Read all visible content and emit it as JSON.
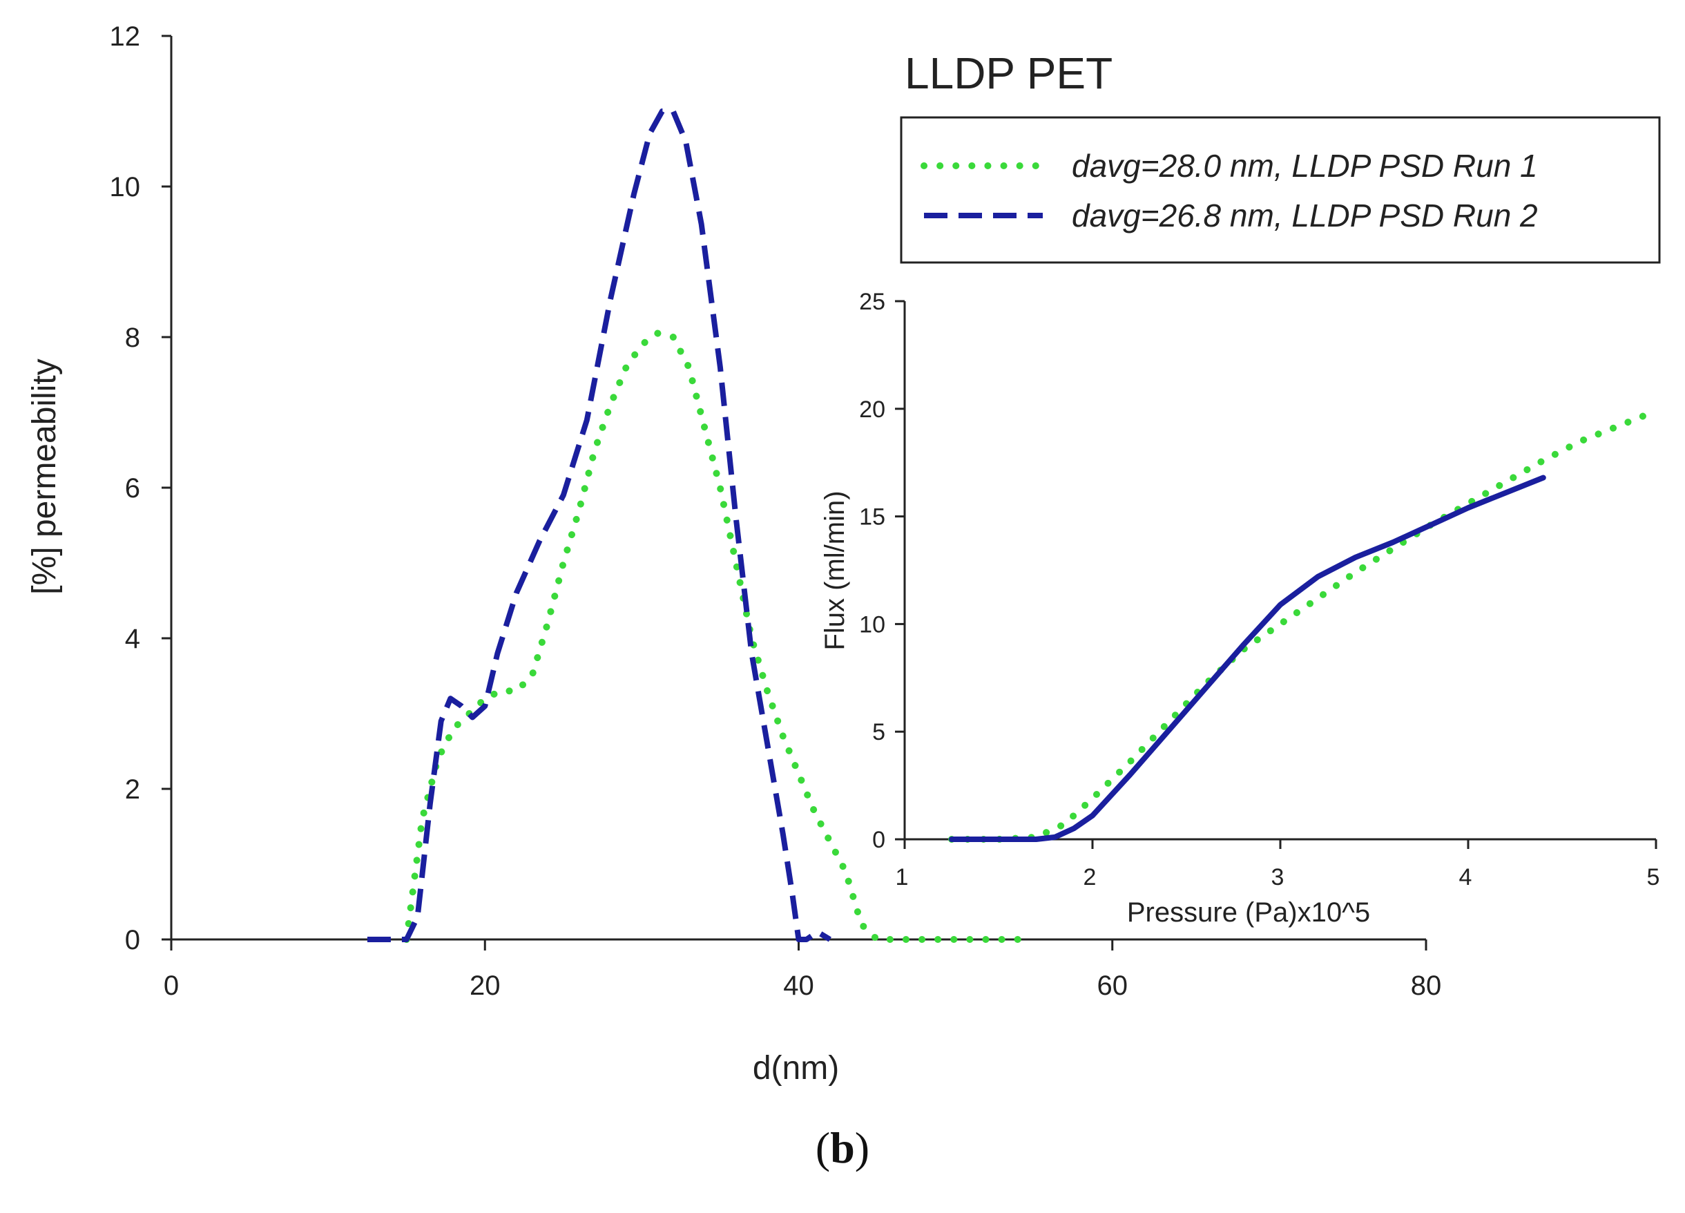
{
  "figure": {
    "caption_open": "(",
    "caption_letter": "b",
    "caption_close": ")"
  },
  "colors": {
    "run1": "#3ad93a",
    "run2": "#1a1f9e",
    "axis": "#222222"
  },
  "chart_data": [
    {
      "type": "line",
      "title": "LLDP PET",
      "xlabel": "d(nm)",
      "ylabel": "[%] permeability",
      "xlim": [
        0,
        80
      ],
      "ylim": [
        0,
        12
      ],
      "xticks": [
        0,
        20,
        40,
        60,
        80
      ],
      "yticks": [
        0,
        2,
        4,
        6,
        8,
        10,
        12
      ],
      "legend_position": "top-right",
      "series": [
        {
          "name": "davg=28.0 nm, LLDP PSD Run 1",
          "style": "dotted",
          "color": "#3ad93a",
          "x": [
            15,
            16,
            17,
            18,
            19,
            20,
            21,
            22,
            23,
            24,
            25,
            26,
            27,
            28,
            29,
            30,
            31,
            32,
            33,
            34,
            35,
            36,
            37,
            38,
            39,
            40,
            41,
            42,
            43,
            44,
            45,
            46,
            48,
            50,
            52,
            54
          ],
          "y": [
            0,
            1.6,
            2.4,
            2.8,
            3.0,
            3.2,
            3.3,
            3.3,
            3.5,
            4.2,
            5.0,
            5.7,
            6.5,
            7.1,
            7.6,
            7.9,
            8.05,
            8.0,
            7.6,
            6.8,
            6.0,
            5.0,
            4.0,
            3.3,
            2.7,
            2.2,
            1.7,
            1.3,
            0.9,
            0.2,
            0,
            0,
            0,
            0,
            0,
            0
          ]
        },
        {
          "name": "davg=26.8 nm, LLDP PSD Run 2",
          "style": "dashed",
          "color": "#1a1f9e",
          "x": [
            12.5,
            15,
            15.7,
            16.5,
            17.2,
            17.8,
            18.5,
            19.2,
            20,
            20.8,
            22,
            23.5,
            25,
            26.5,
            28,
            29.5,
            30.5,
            31.3,
            32,
            32.8,
            33.8,
            35,
            36,
            37,
            38,
            39,
            39.6,
            40,
            40.5,
            41.2,
            42
          ],
          "y": [
            0,
            0,
            0.3,
            1.8,
            2.9,
            3.2,
            3.1,
            2.95,
            3.1,
            3.8,
            4.6,
            5.3,
            5.9,
            6.9,
            8.5,
            9.9,
            10.7,
            11.0,
            11.0,
            10.6,
            9.5,
            7.6,
            5.6,
            3.8,
            2.6,
            1.4,
            0.6,
            0,
            0,
            0.1,
            0
          ]
        }
      ]
    },
    {
      "type": "line",
      "title": "",
      "xlabel": "Pressure (Pa)x10^5",
      "ylabel": "Flux (ml/min)",
      "xlim": [
        1,
        5
      ],
      "ylim": [
        0,
        25
      ],
      "xticks": [
        1,
        2,
        3,
        4,
        5
      ],
      "yticks": [
        0,
        5,
        10,
        15,
        20,
        25
      ],
      "series": [
        {
          "name": "Run 1",
          "style": "dotted",
          "color": "#3ad93a",
          "x": [
            1.25,
            1.5,
            1.7,
            1.85,
            2.0,
            2.2,
            2.4,
            2.6,
            2.8,
            3.0,
            3.2,
            3.4,
            3.6,
            3.8,
            4.0,
            4.2,
            4.4,
            4.6,
            4.8,
            5.0
          ],
          "y": [
            0,
            0,
            0.1,
            0.7,
            1.9,
            3.6,
            5.4,
            7.2,
            8.8,
            10.0,
            11.2,
            12.4,
            13.5,
            14.6,
            15.6,
            16.6,
            17.6,
            18.5,
            19.2,
            19.9
          ]
        },
        {
          "name": "Run 2",
          "style": "solid",
          "color": "#1a1f9e",
          "x": [
            1.25,
            1.5,
            1.7,
            1.8,
            1.9,
            2.0,
            2.2,
            2.4,
            2.6,
            2.8,
            3.0,
            3.2,
            3.4,
            3.6,
            3.8,
            4.0,
            4.2,
            4.4
          ],
          "y": [
            0,
            0,
            0,
            0.1,
            0.5,
            1.1,
            3.0,
            5.0,
            7.0,
            9.0,
            10.9,
            12.2,
            13.1,
            13.8,
            14.6,
            15.4,
            16.1,
            16.8
          ]
        }
      ]
    }
  ]
}
